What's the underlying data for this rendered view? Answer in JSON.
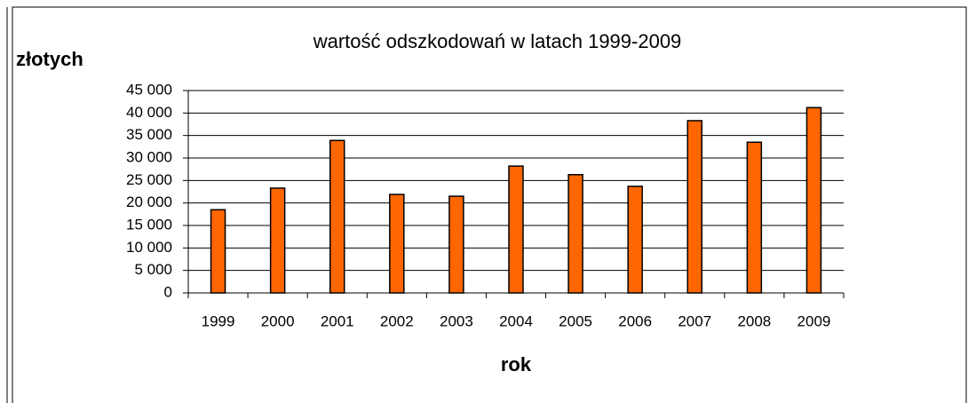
{
  "chart_data": {
    "type": "bar",
    "title": "wartość odszkodowań w latach 1999-2009",
    "y_label": "złotych",
    "x_label": "rok",
    "categories": [
      "1999",
      "2000",
      "2001",
      "2002",
      "2003",
      "2004",
      "2005",
      "2006",
      "2007",
      "2008",
      "2009"
    ],
    "values": [
      18500,
      23300,
      33900,
      21900,
      21500,
      28200,
      26300,
      23700,
      38300,
      33500,
      41200
    ],
    "color": "#ff6600",
    "ylim": [
      0,
      45000
    ],
    "yticks": [
      0,
      {
        "value": 5000,
        "label": "5 000"
      },
      {
        "value": 10000,
        "label": "10 000"
      },
      {
        "value": 15000,
        "label": "15 000"
      },
      {
        "value": 20000,
        "label": "20 000"
      },
      {
        "value": 25000,
        "label": "25 000"
      },
      {
        "value": 30000,
        "label": "30 000"
      },
      {
        "value": 35000,
        "label": "35 000"
      },
      {
        "value": 40000,
        "label": "40 000"
      },
      {
        "value": 45000,
        "label": "45 000"
      }
    ],
    "grid": true
  }
}
